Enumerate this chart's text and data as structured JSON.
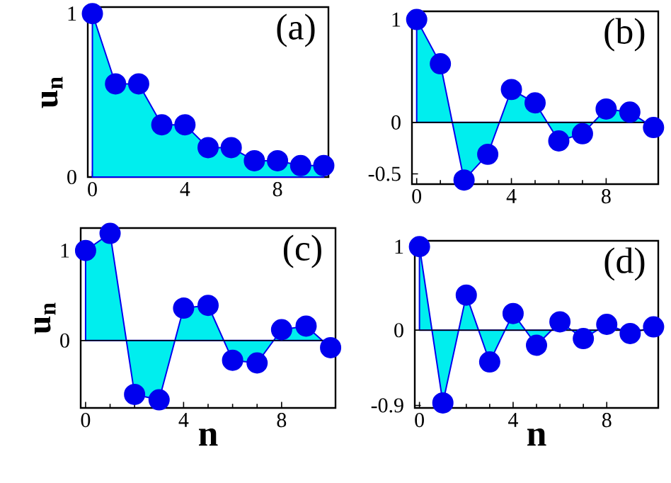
{
  "chart_data": [
    {
      "type": "area",
      "ylabel": "u$_{n}$",
      "annotations": [
        "(a)"
      ],
      "marker": "circle",
      "x": [
        0,
        1,
        2,
        3,
        4,
        5,
        6,
        7,
        8,
        9,
        10
      ],
      "xlim": [
        -0.2,
        10.2
      ],
      "ylim": [
        0,
        1.04
      ],
      "xticks": [
        0,
        4,
        8
      ],
      "yticks": [
        0,
        1
      ],
      "series": [
        {
          "color": "#0000ee",
          "values": [
            1,
            0.57,
            0.57,
            0.32,
            0.32,
            0.18,
            0.18,
            0.1,
            0.1,
            0.07,
            0.07
          ]
        }
      ]
    },
    {
      "type": "area",
      "annotations": [
        "(b)"
      ],
      "marker": "circle",
      "x": [
        0,
        1,
        2,
        3,
        4,
        5,
        6,
        7,
        8,
        9,
        10
      ],
      "xlim": [
        -0.2,
        10.2
      ],
      "ylim": [
        -0.6,
        1.08
      ],
      "xticks": [
        0,
        4,
        8
      ],
      "yticks": [
        -0.5,
        0,
        1
      ],
      "ref_lines": [
        {
          "axis": "y",
          "value": 0
        }
      ],
      "series": [
        {
          "color": "#0000ee",
          "values": [
            1,
            0.57,
            -0.56,
            -0.31,
            0.32,
            0.19,
            -0.18,
            -0.11,
            0.13,
            0.1,
            -0.05
          ]
        }
      ]
    },
    {
      "type": "area",
      "xlabel": "n",
      "ylabel": "u$_{n}$",
      "annotations": [
        "(c)"
      ],
      "marker": "circle",
      "x": [
        0,
        1,
        2,
        3,
        4,
        5,
        6,
        7,
        8,
        9,
        10
      ],
      "xlim": [
        -0.2,
        10.2
      ],
      "ylim": [
        -0.75,
        1.25
      ],
      "xticks": [
        0,
        4,
        8
      ],
      "yticks": [
        0,
        1
      ],
      "ref_lines": [
        {
          "axis": "y",
          "value": 0
        }
      ],
      "series": [
        {
          "color": "#0000ee",
          "values": [
            1,
            1.19,
            -0.6,
            -0.66,
            0.36,
            0.39,
            -0.22,
            -0.25,
            0.12,
            0.16,
            -0.08
          ]
        }
      ]
    },
    {
      "type": "area",
      "xlabel": "n",
      "annotations": [
        "(d)"
      ],
      "marker": "circle",
      "x": [
        0,
        1,
        2,
        3,
        4,
        5,
        6,
        7,
        8,
        9,
        10
      ],
      "xlim": [
        -0.2,
        10.2
      ],
      "ylim": [
        -0.93,
        1.07
      ],
      "xticks": [
        0,
        4,
        8
      ],
      "yticks": [
        -0.9,
        0,
        1
      ],
      "ref_lines": [
        {
          "axis": "y",
          "value": 0
        }
      ],
      "series": [
        {
          "color": "#0000ee",
          "values": [
            1,
            -0.87,
            0.42,
            -0.38,
            0.2,
            -0.18,
            0.1,
            -0.1,
            0.07,
            -0.04,
            0.04
          ]
        }
      ]
    }
  ]
}
